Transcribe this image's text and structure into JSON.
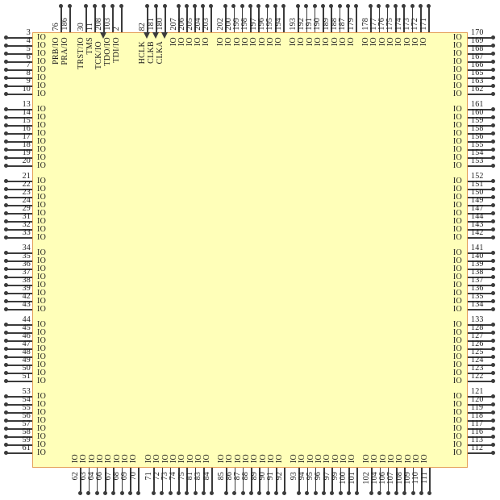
{
  "diagram": {
    "type": "chip-pinout",
    "default_pin_label": "IO",
    "colors": {
      "package_fill": "#FFFFB9",
      "package_border": "#E5A057",
      "pin_line": "#3b3b3b",
      "text": "#1b1b1b"
    },
    "sides": {
      "top": {
        "groups": [
          [
            {
              "n": "76",
              "l": "PRB/IO"
            },
            {
              "n": "186",
              "l": "PRA/IO"
            }
          ],
          [
            {
              "n": "30",
              "l": "TRST/IO"
            },
            {
              "n": "11",
              "l": "TMS"
            },
            {
              "n": "208",
              "l": "TCK/IO",
              "arrow": true
            },
            {
              "n": "103",
              "l": "TDO/IO"
            },
            {
              "n": "2",
              "l": "TDI/IO"
            }
          ],
          [
            {
              "n": "82",
              "l": "HCLK",
              "arrow": true
            },
            {
              "n": "181",
              "l": "CLKB",
              "arrow": true
            },
            {
              "n": "180",
              "l": "CLKA",
              "arrow": true
            }
          ],
          [
            "207",
            "206",
            "205",
            "204",
            "203"
          ],
          [
            "202",
            "200",
            "199",
            "198",
            "197",
            "196",
            "195",
            "194"
          ],
          [
            "193",
            "192",
            "191",
            "190",
            "189",
            "188",
            "187",
            "179"
          ],
          [
            "178",
            "177",
            "176",
            "175",
            "174",
            "173",
            "172",
            "171"
          ]
        ]
      },
      "right": {
        "groups": [
          [
            "170",
            "169",
            "168",
            "167",
            "166",
            "165",
            "163",
            "162"
          ],
          [
            "161",
            "160",
            "159",
            "158",
            "156",
            "155",
            "154",
            "153"
          ],
          [
            "152",
            "151",
            "150",
            "149",
            "147",
            "144",
            "143",
            "142"
          ],
          [
            "141",
            "140",
            "139",
            "138",
            "137",
            "136",
            "135",
            "134"
          ],
          [
            "133",
            "128",
            "127",
            "126",
            "125",
            "124",
            "123",
            "122"
          ],
          [
            "121",
            "120",
            "119",
            "118",
            "117",
            "116",
            "113",
            "112"
          ]
        ]
      },
      "bottom": {
        "groups": [
          [
            "62",
            "63",
            "64",
            "66",
            "67",
            "68",
            "69",
            "70"
          ],
          [
            "71",
            "72",
            "73",
            "74",
            "75",
            "81",
            "83",
            "84"
          ],
          [
            "85",
            "86",
            "87",
            "88",
            "89",
            "90",
            "91",
            "92"
          ],
          [
            "93",
            "94",
            "95",
            "96",
            "97",
            "99",
            "100",
            "101"
          ],
          [
            "102",
            "104",
            "106",
            "107",
            "108",
            "109",
            "110",
            "111"
          ]
        ]
      },
      "left": {
        "groups": [
          [
            "3",
            "4",
            "5",
            "6",
            "7",
            "8",
            "9",
            "10"
          ],
          [
            "13",
            "14",
            "15",
            "16",
            "17",
            "18",
            "19",
            "20"
          ],
          [
            "21",
            "22",
            "23",
            "24",
            "29",
            "31",
            "32",
            "33"
          ],
          [
            "34",
            "35",
            "36",
            "37",
            "38",
            "39",
            "42",
            "43"
          ],
          [
            "44",
            "45",
            "46",
            "47",
            "48",
            "49",
            "50",
            "51"
          ],
          [
            "53",
            "54",
            "55",
            "56",
            "57",
            "58",
            "59",
            "61"
          ]
        ]
      }
    }
  }
}
